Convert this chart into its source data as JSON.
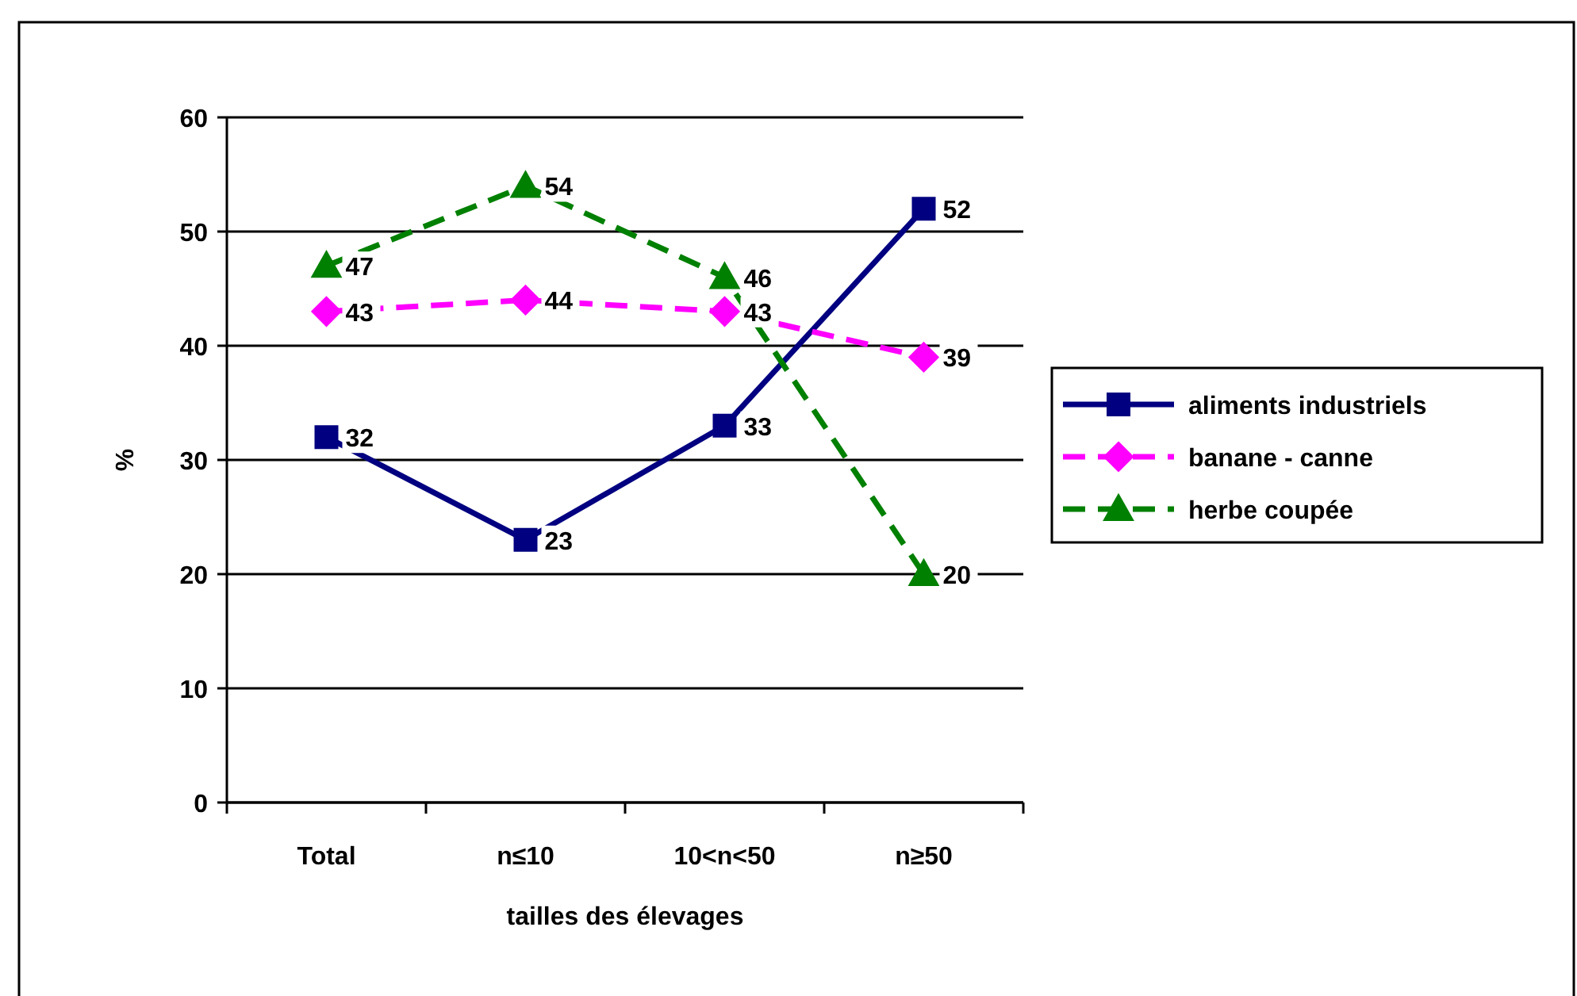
{
  "chart_data": {
    "type": "line",
    "xlabel": "tailles des élevages",
    "ylabel": "%",
    "categories": [
      "Total",
      "n≤10",
      "10<n<50",
      "n≥50"
    ],
    "series": [
      {
        "name": "aliments industriels",
        "color": "#000080",
        "values": [
          32,
          23,
          33,
          52
        ],
        "marker": "square",
        "line_style": "solid"
      },
      {
        "name": "banane - canne",
        "color": "#ff00ff",
        "values": [
          43,
          44,
          43,
          39
        ],
        "marker": "diamond",
        "line_style": "dashed"
      },
      {
        "name": "herbe coupée",
        "color": "#008000",
        "values": [
          47,
          54,
          46,
          20
        ],
        "marker": "triangle",
        "line_style": "dashed"
      }
    ],
    "ylim": [
      0,
      60
    ],
    "yticks": [
      0,
      10,
      20,
      30,
      40,
      50,
      60
    ],
    "grid": "y",
    "legend": "right",
    "data_labels": true
  }
}
